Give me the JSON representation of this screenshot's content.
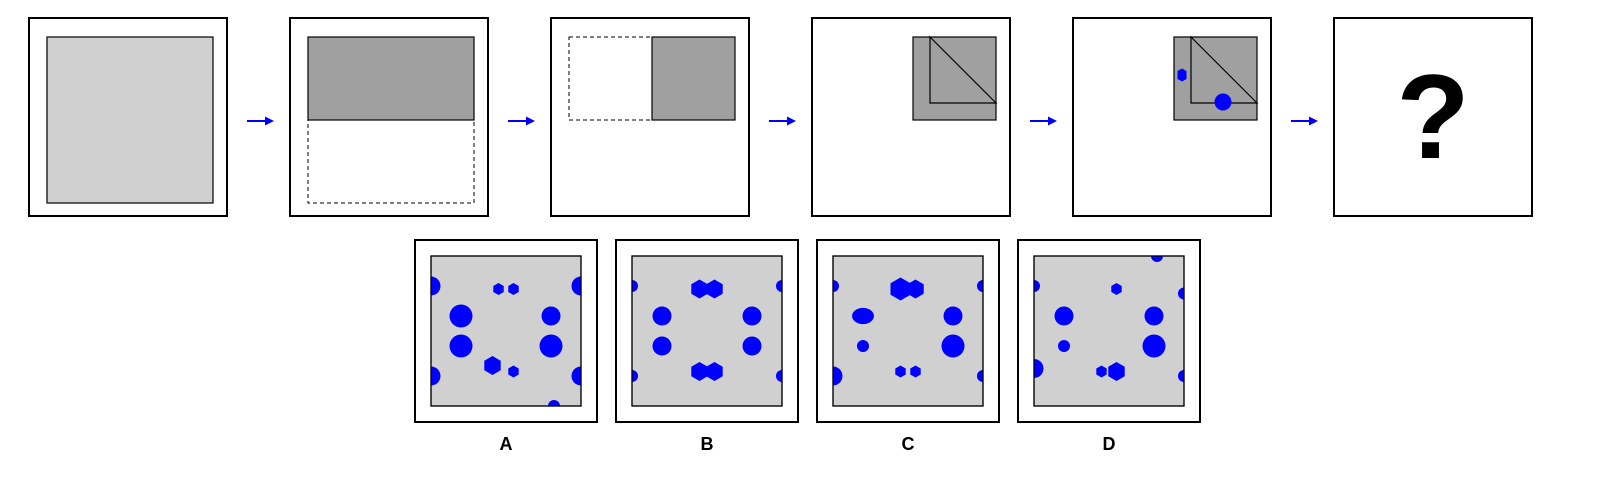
{
  "colors": {
    "paper": "#d0d0d0",
    "folded": "#a0a0a0",
    "hole": "#0000ff",
    "arrow": "#0000ff",
    "frame": "#000000"
  },
  "sequence": {
    "steps": [
      {
        "name": "unfolded-paper",
        "arrow_after": true
      },
      {
        "name": "fold-top-half-down",
        "arrow_after": true
      },
      {
        "name": "fold-left-half-right",
        "arrow_after": true
      },
      {
        "name": "fold-diagonal",
        "arrow_after": true
      },
      {
        "name": "punch-holes",
        "hole_shapes": [
          "hexagon",
          "circle"
        ],
        "arrow_after": true
      },
      {
        "name": "question-panel",
        "symbol": "?"
      }
    ]
  },
  "options": [
    {
      "label": "A",
      "holes": [
        {
          "shape": "circle",
          "u": 0.0,
          "v": 0.2,
          "size": "medium"
        },
        {
          "shape": "hexagon",
          "u": 0.45,
          "v": 0.22,
          "size": "small"
        },
        {
          "shape": "hexagon",
          "u": 0.55,
          "v": 0.22,
          "size": "small"
        },
        {
          "shape": "circle",
          "u": 1.0,
          "v": 0.2,
          "size": "medium"
        },
        {
          "shape": "circle",
          "u": 0.2,
          "v": 0.4,
          "size": "large"
        },
        {
          "shape": "circle",
          "u": 0.8,
          "v": 0.4,
          "size": "medium"
        },
        {
          "shape": "circle",
          "u": 0.2,
          "v": 0.6,
          "size": "large"
        },
        {
          "shape": "circle",
          "u": 0.8,
          "v": 0.6,
          "size": "large"
        },
        {
          "shape": "circle",
          "u": 0.0,
          "v": 0.8,
          "size": "medium"
        },
        {
          "shape": "hexagon",
          "u": 0.41,
          "v": 0.73,
          "size": "medium"
        },
        {
          "shape": "hexagon",
          "u": 0.55,
          "v": 0.77,
          "size": "small"
        },
        {
          "shape": "circle",
          "u": 1.0,
          "v": 0.8,
          "size": "medium"
        },
        {
          "shape": "circle",
          "u": 0.82,
          "v": 1.0,
          "size": "small"
        }
      ]
    },
    {
      "label": "B",
      "holes": [
        {
          "shape": "circle",
          "u": 0.0,
          "v": 0.2,
          "size": "small"
        },
        {
          "shape": "hexagon",
          "u": 0.45,
          "v": 0.22,
          "size": "medium"
        },
        {
          "shape": "hexagon",
          "u": 0.55,
          "v": 0.22,
          "size": "medium"
        },
        {
          "shape": "circle",
          "u": 1.0,
          "v": 0.2,
          "size": "small"
        },
        {
          "shape": "circle",
          "u": 0.2,
          "v": 0.4,
          "size": "medium"
        },
        {
          "shape": "circle",
          "u": 0.8,
          "v": 0.4,
          "size": "medium"
        },
        {
          "shape": "circle",
          "u": 0.2,
          "v": 0.6,
          "size": "medium"
        },
        {
          "shape": "circle",
          "u": 0.8,
          "v": 0.6,
          "size": "medium"
        },
        {
          "shape": "circle",
          "u": 0.0,
          "v": 0.8,
          "size": "small"
        },
        {
          "shape": "hexagon",
          "u": 0.45,
          "v": 0.77,
          "size": "medium"
        },
        {
          "shape": "hexagon",
          "u": 0.55,
          "v": 0.77,
          "size": "medium"
        },
        {
          "shape": "circle",
          "u": 1.0,
          "v": 0.8,
          "size": "small"
        }
      ]
    },
    {
      "label": "C",
      "holes": [
        {
          "shape": "circle",
          "u": 0.0,
          "v": 0.2,
          "size": "small"
        },
        {
          "shape": "hexagon",
          "u": 0.45,
          "v": 0.22,
          "size": "large"
        },
        {
          "shape": "hexagon",
          "u": 0.55,
          "v": 0.22,
          "size": "medium"
        },
        {
          "shape": "circle",
          "u": 1.0,
          "v": 0.2,
          "size": "small"
        },
        {
          "shape": "ellipse",
          "u": 0.2,
          "v": 0.4,
          "size": "medium"
        },
        {
          "shape": "circle",
          "u": 0.8,
          "v": 0.4,
          "size": "medium"
        },
        {
          "shape": "circle",
          "u": 0.2,
          "v": 0.6,
          "size": "small"
        },
        {
          "shape": "circle",
          "u": 0.8,
          "v": 0.6,
          "size": "large"
        },
        {
          "shape": "circle",
          "u": 0.0,
          "v": 0.8,
          "size": "medium"
        },
        {
          "shape": "hexagon",
          "u": 0.45,
          "v": 0.77,
          "size": "small"
        },
        {
          "shape": "hexagon",
          "u": 0.55,
          "v": 0.77,
          "size": "small"
        },
        {
          "shape": "circle",
          "u": 1.0,
          "v": 0.8,
          "size": "small"
        }
      ]
    },
    {
      "label": "D",
      "holes": [
        {
          "shape": "circle",
          "u": 0.0,
          "v": 0.2,
          "size": "small"
        },
        {
          "shape": "hexagon",
          "u": 0.55,
          "v": 0.22,
          "size": "small"
        },
        {
          "shape": "circle",
          "u": 1.0,
          "v": 0.25,
          "size": "small"
        },
        {
          "shape": "circle",
          "u": 0.2,
          "v": 0.4,
          "size": "medium"
        },
        {
          "shape": "circle",
          "u": 0.8,
          "v": 0.4,
          "size": "medium"
        },
        {
          "shape": "circle",
          "u": 0.2,
          "v": 0.6,
          "size": "small"
        },
        {
          "shape": "circle",
          "u": 0.8,
          "v": 0.6,
          "size": "large"
        },
        {
          "shape": "circle",
          "u": 0.0,
          "v": 0.75,
          "size": "medium"
        },
        {
          "shape": "hexagon",
          "u": 0.45,
          "v": 0.77,
          "size": "small"
        },
        {
          "shape": "hexagon",
          "u": 0.55,
          "v": 0.77,
          "size": "medium"
        },
        {
          "shape": "circle",
          "u": 1.0,
          "v": 0.8,
          "size": "small"
        },
        {
          "shape": "circle",
          "u": 0.82,
          "v": 0.0,
          "size": "small"
        }
      ]
    }
  ]
}
